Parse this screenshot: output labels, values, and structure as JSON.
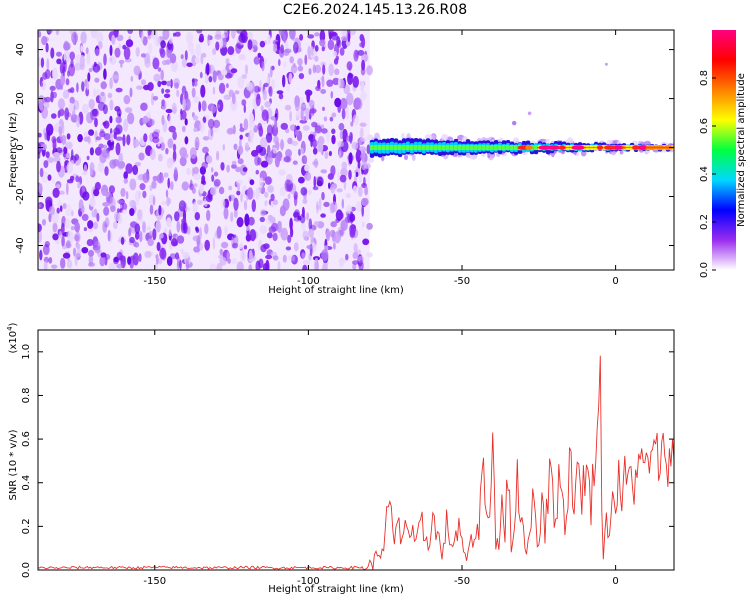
{
  "title": "C2E6.2024.145.13.26.R08",
  "chart_data": [
    {
      "type": "heatmap",
      "xlabel": "Height of straight line (km)",
      "ylabel": "Frequency (Hz)",
      "xlim": [
        -188,
        19
      ],
      "ylim": [
        -50,
        48
      ],
      "x_ticks": [
        -150,
        -100,
        -50,
        0
      ],
      "y_ticks": [
        -40,
        -20,
        0,
        20,
        40
      ],
      "x_tick_labels": [
        "-150",
        "-100",
        "-50",
        "0"
      ],
      "y_tick_labels": [
        "-40",
        "-20",
        "0",
        "20",
        "40"
      ],
      "noise_region_x": [
        -188,
        -80
      ],
      "signal_region_x": [
        -80,
        19
      ],
      "signal_line_frequency": 0,
      "colorbar": {
        "label": "Normalized spectral amplitude",
        "range": [
          0,
          1
        ],
        "ticks": [
          0.0,
          0.2,
          0.4,
          0.6,
          0.8
        ],
        "tick_labels": [
          "0.0",
          "0.2",
          "0.4",
          "0.6",
          "0.8"
        ],
        "colors": [
          "#ffffff",
          "#9a2cf0",
          "#0000ff",
          "#00d8ff",
          "#00ff40",
          "#ffff00",
          "#ff8000",
          "#ff0000",
          "#ff0080"
        ]
      }
    },
    {
      "type": "line",
      "xlabel": "Height of straight line (km)",
      "ylabel": "SNR (10 * v/v)",
      "scale_label": "(x10",
      "scale_exp": "4",
      "scale_close": ")",
      "xlim": [
        -188,
        19
      ],
      "ylim": [
        0,
        1.1
      ],
      "x_ticks": [
        -150,
        -100,
        -50,
        0
      ],
      "y_ticks": [
        0.0,
        0.2,
        0.4,
        0.6,
        0.8,
        1.0
      ],
      "x_tick_labels": [
        "-150",
        "-100",
        "-50",
        "0"
      ],
      "y_tick_labels": [
        "0.0",
        "0.2",
        "0.4",
        "0.6",
        "0.8",
        "1.0"
      ],
      "color": "#e8312a",
      "series": [
        {
          "x": [
            -188,
            -180,
            -170,
            -160,
            -150,
            -140,
            -130,
            -120,
            -110,
            -100,
            -90,
            -82,
            -79,
            -77,
            -75,
            -74,
            -72,
            -71,
            -70,
            -69,
            -67,
            -65,
            -63,
            -61,
            -60,
            -58,
            -56,
            -55,
            -53,
            -51,
            -50,
            -48,
            -46,
            -45,
            -43,
            -42,
            -41,
            -40,
            -39,
            -38,
            -37,
            -36,
            -35,
            -34,
            -33,
            -32,
            -31,
            -30,
            -29,
            -28,
            -27,
            -26,
            -25,
            -24,
            -23,
            -22,
            -21,
            -20,
            -19,
            -18,
            -17,
            -16,
            -15,
            -14,
            -13,
            -12,
            -11,
            -10,
            -9,
            -8,
            -7,
            -6,
            -5,
            -4.5,
            -4,
            -3.5,
            -3,
            -2,
            -1,
            0,
            1,
            2,
            3,
            4,
            5,
            6,
            7,
            8,
            9,
            10,
            11,
            12,
            13,
            14,
            15,
            16,
            17,
            18,
            19
          ],
          "y": [
            0.01,
            0.01,
            0.012,
            0.01,
            0.012,
            0.011,
            0.01,
            0.012,
            0.01,
            0.011,
            0.01,
            0.012,
            0.03,
            0.08,
            0.14,
            0.3,
            0.12,
            0.2,
            0.15,
            0.22,
            0.18,
            0.1,
            0.2,
            0.12,
            0.25,
            0.15,
            0.08,
            0.2,
            0.12,
            0.18,
            0.1,
            0.05,
            0.2,
            0.15,
            0.5,
            0.2,
            0.35,
            0.6,
            0.15,
            0.08,
            0.3,
            0.2,
            0.45,
            0.1,
            0.25,
            0.4,
            0.15,
            0.3,
            0.05,
            0.2,
            0.35,
            0.25,
            0.1,
            0.4,
            0.2,
            0.3,
            0.5,
            0.25,
            0.35,
            0.45,
            0.3,
            0.2,
            0.55,
            0.4,
            0.3,
            0.5,
            0.35,
            0.45,
            0.4,
            0.3,
            0.5,
            0.55,
            1.1,
            0.3,
            0.05,
            0.15,
            0.2,
            0.25,
            0.3,
            0.35,
            0.4,
            0.33,
            0.42,
            0.38,
            0.45,
            0.4,
            0.48,
            0.44,
            0.5,
            0.46,
            0.52,
            0.48,
            0.55,
            0.5,
            0.52,
            0.56,
            0.5,
            0.54,
            0.5
          ]
        }
      ]
    }
  ]
}
